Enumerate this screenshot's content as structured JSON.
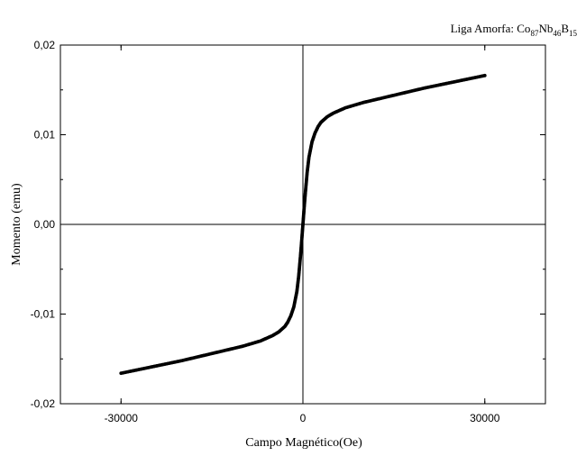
{
  "chart_data": {
    "type": "scatter",
    "title": {
      "prefix": "Liga Amorfa: ",
      "parts": [
        {
          "text": "Co",
          "sub": "87"
        },
        {
          "text": "Nb",
          "sub": "46"
        },
        {
          "text": "B",
          "sub": "15"
        }
      ]
    },
    "xlabel": "Campo Magnético(Oe)",
    "ylabel": "Momento (emu)",
    "xlim": [
      -40000,
      40000
    ],
    "ylim": [
      -0.02,
      0.02
    ],
    "x_ticks": [
      {
        "value": -30000,
        "label": "-30000"
      },
      {
        "value": 0,
        "label": "0"
      },
      {
        "value": 30000,
        "label": "30000"
      }
    ],
    "y_ticks": [
      {
        "value": 0.02,
        "label": "0,02"
      },
      {
        "value": 0.01,
        "label": "0,01"
      },
      {
        "value": 0.0,
        "label": "0,00"
      },
      {
        "value": -0.01,
        "label": "-0,01"
      },
      {
        "value": -0.02,
        "label": "-0,02"
      }
    ],
    "zero_lines": true,
    "grid": false,
    "marker_color": "#000000",
    "series": [
      {
        "x": [
          -30000,
          -25000,
          -20000,
          -15000,
          -10000,
          -7000,
          -5000,
          -4000,
          -3000,
          -2500,
          -2000,
          -1500,
          -1000,
          -700,
          -400,
          -200,
          0,
          200,
          400,
          700,
          1000,
          1500,
          2000,
          2500,
          3000,
          4000,
          5000,
          7000,
          10000,
          15000,
          20000,
          25000,
          30000
        ],
        "y": [
          -0.0166,
          -0.0159,
          -0.0152,
          -0.0144,
          -0.0136,
          -0.013,
          -0.0124,
          -0.012,
          -0.0114,
          -0.0109,
          -0.0102,
          -0.0092,
          -0.0075,
          -0.0058,
          -0.0035,
          -0.0018,
          0.0,
          0.0018,
          0.0035,
          0.0058,
          0.0075,
          0.0092,
          0.0102,
          0.0109,
          0.0114,
          0.012,
          0.0124,
          0.013,
          0.0136,
          0.0144,
          0.0152,
          0.0159,
          0.0166
        ]
      }
    ]
  }
}
